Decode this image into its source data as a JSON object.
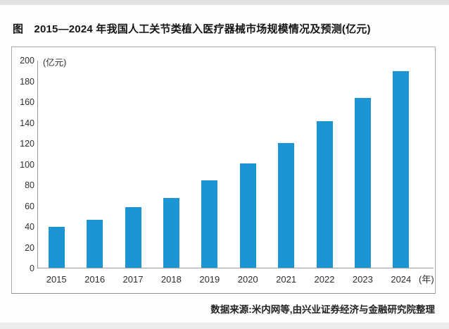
{
  "figure": {
    "title": "图　2015—2024 年我国人工关节类植入医疗器械市场规模情况及预测(亿元)",
    "source": "数据来源:米内网等,由兴业证券经济与金融研究院整理"
  },
  "chart_data": {
    "type": "bar",
    "title": "2015—2024 年我国人工关节类植入医疗器械市场规模情况及预测(亿元)",
    "categories": [
      "2015",
      "2016",
      "2017",
      "2018",
      "2019",
      "2020",
      "2021",
      "2022",
      "2023",
      "2024"
    ],
    "values": [
      40,
      47,
      59,
      68,
      85,
      101,
      121,
      142,
      164,
      190
    ],
    "xlabel": "",
    "ylabel": "",
    "y_unit_label": "(亿元)",
    "x_unit_label": "(年)",
    "ylim": [
      0,
      200
    ],
    "yticks": [
      0,
      20,
      40,
      60,
      80,
      100,
      120,
      140,
      160,
      180,
      200
    ],
    "grid": false,
    "legend": "none",
    "bar_color": "#1B95D3",
    "axis_color": "#9a9a9a"
  }
}
